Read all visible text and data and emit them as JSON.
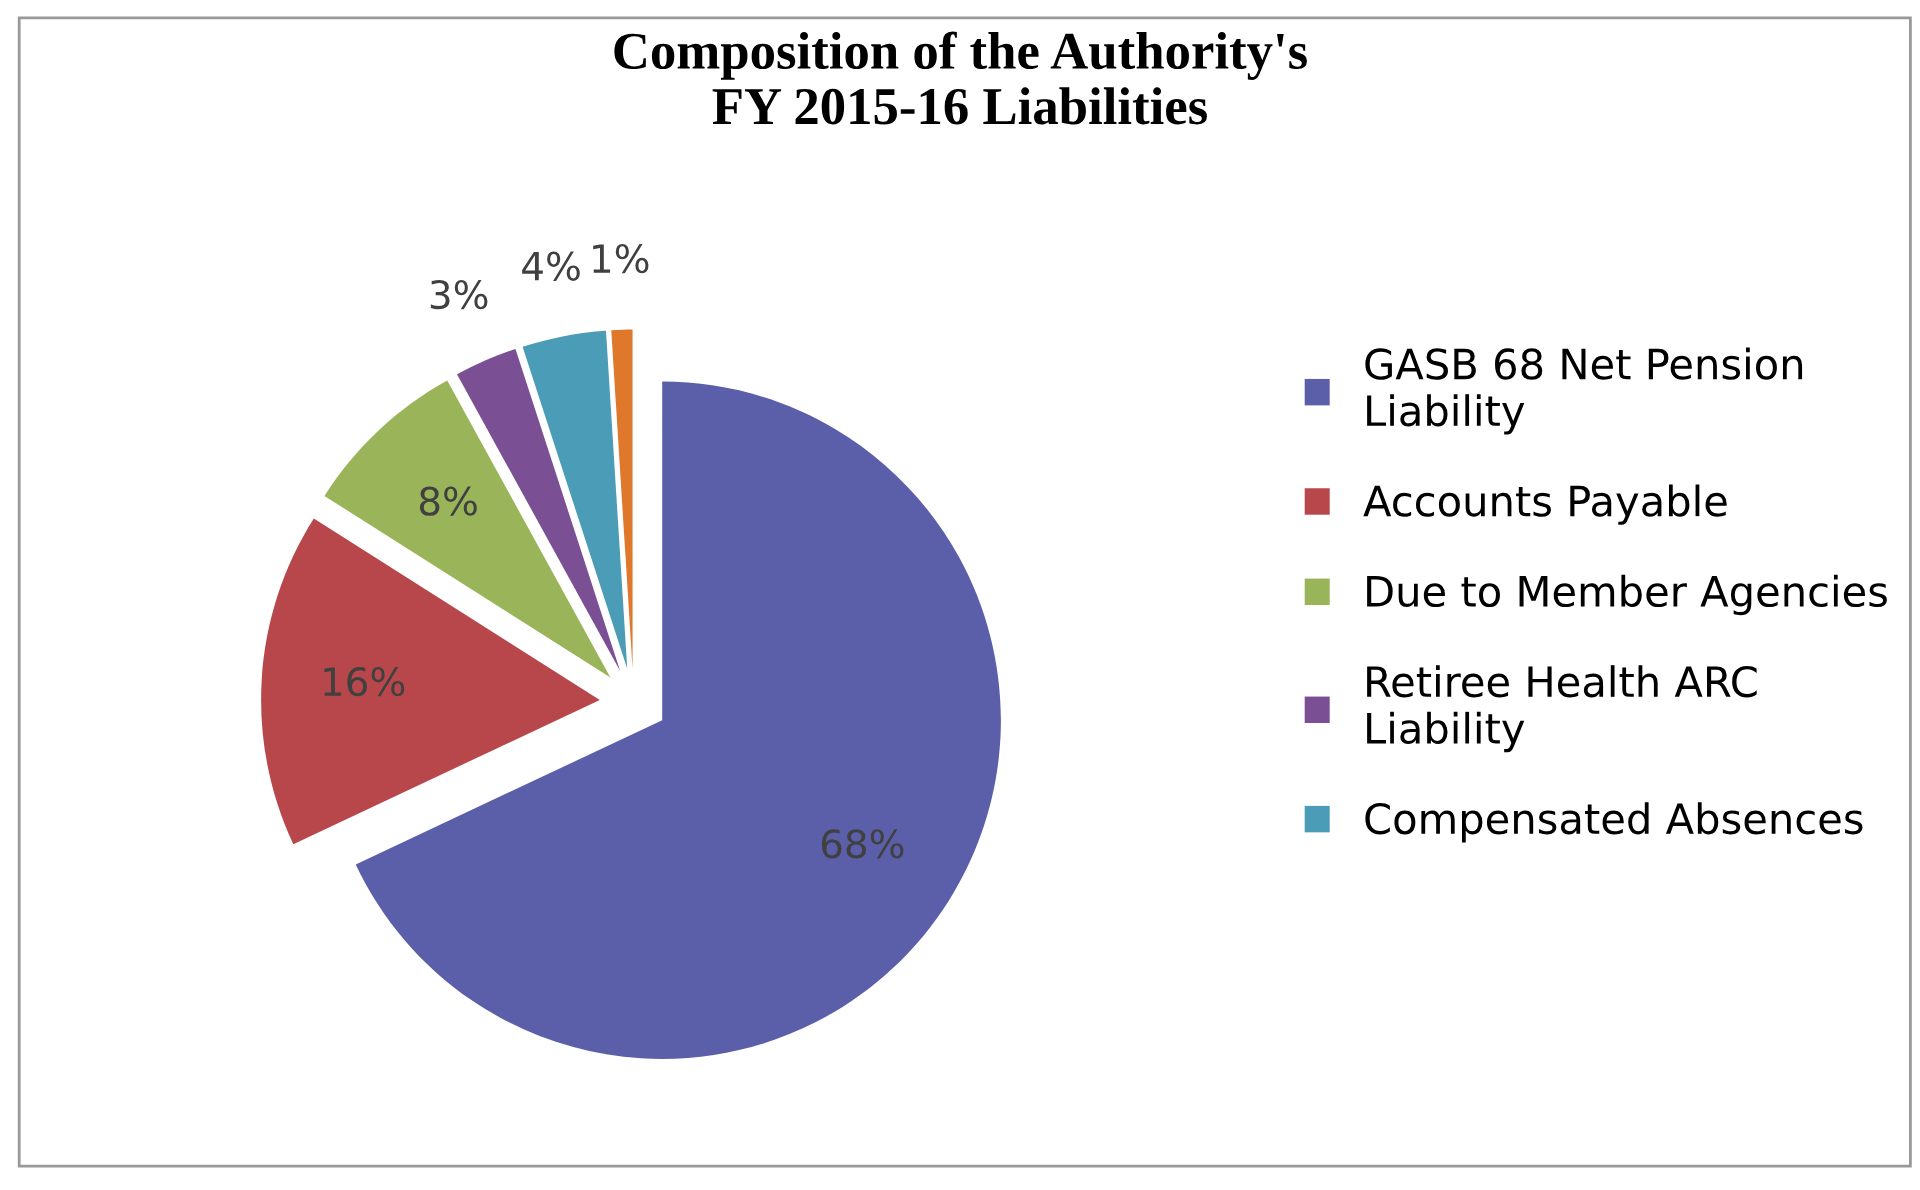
{
  "chart_data": {
    "type": "pie",
    "title": "Composition of the Authority's\nFY 2015-16 Liabilities",
    "categories": [
      "GASB 68 Net Pension Liability",
      "Accounts Payable",
      "Due to Member Agencies",
      "Retiree Health ARC Liability",
      "Compensated Absences",
      null
    ],
    "values": [
      68,
      16,
      8,
      3,
      4,
      1
    ],
    "value_labels": [
      "68%",
      "16%",
      "8%",
      "3%",
      "4%",
      "1%"
    ],
    "colors": [
      "#5b5fa9",
      "#b8474b",
      "#9ab45a",
      "#7a4f93",
      "#4b9cb6",
      "#e0782c"
    ],
    "legend": "right"
  }
}
